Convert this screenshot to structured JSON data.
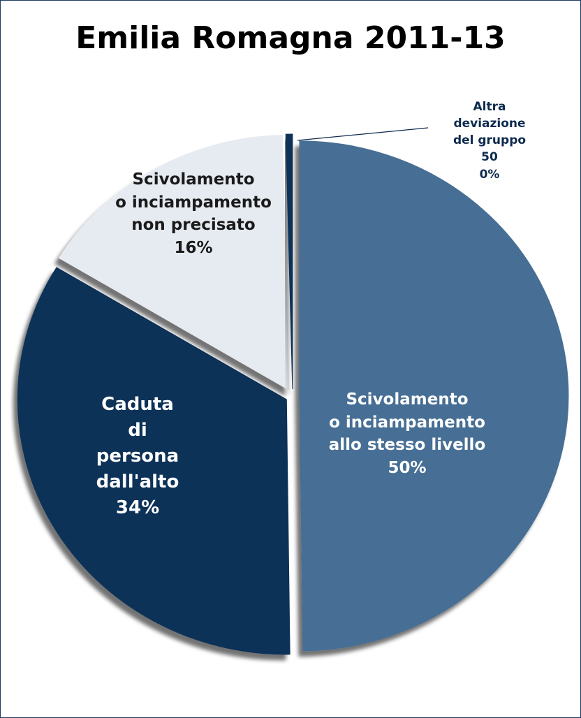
{
  "chart_data": {
    "type": "pie",
    "title": "Emilia Romagna 2011-13",
    "categories": [
      "Scivolamento\no inciampamento\nallo stesso livello",
      "Caduta\ndi\npersona\ndall'alto",
      "Scivolamento\no inciampamento\nnon precisato",
      "Altra\ndeviazione\ndel gruppo\n50"
    ],
    "values": [
      50,
      34,
      16,
      0.4
    ],
    "value_labels": [
      "50%",
      "34%",
      "16%",
      "0%"
    ],
    "colors": [
      "#466e94",
      "#0c3159",
      "#e6eaf1",
      "#0c3159"
    ]
  }
}
